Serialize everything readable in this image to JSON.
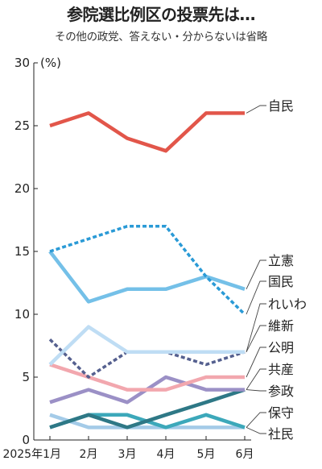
{
  "title": "参院選比例区の投票先は…",
  "subtitle": "その他の政党、答えない・分からないは省略",
  "chart_data": {
    "type": "line",
    "title": "参院選比例区の投票先は…",
    "subtitle": "その他の政党、答えない・分からないは省略",
    "unit": "(%)",
    "x": [
      "2025年1月",
      "2月",
      "3月",
      "4月",
      "5月",
      "6月"
    ],
    "ylim": [
      0,
      30
    ],
    "yticks": [
      "0",
      "5",
      "10",
      "15",
      "20",
      "25",
      "30"
    ],
    "grid": false,
    "legend": "right",
    "series": [
      {
        "name": "自民",
        "color": "#e2564a",
        "dashed": false,
        "values": [
          25,
          26,
          24,
          23,
          26,
          26
        ]
      },
      {
        "name": "立憲",
        "color": "#74c0e8",
        "dashed": false,
        "values": [
          15,
          11,
          12,
          12,
          13,
          12
        ]
      },
      {
        "name": "国民",
        "color": "#2a9ad6",
        "dashed": true,
        "values": [
          15,
          16,
          17,
          17,
          13,
          10
        ]
      },
      {
        "name": "れいわ",
        "color": "#bfddf4",
        "dashed": false,
        "values": [
          6,
          9,
          7,
          7,
          7,
          7
        ]
      },
      {
        "name": "維新",
        "color": "#55608f",
        "dashed": true,
        "values": [
          8,
          5,
          7,
          7,
          6,
          7
        ]
      },
      {
        "name": "公明",
        "color": "#f2a7ae",
        "dashed": false,
        "values": [
          6,
          5,
          4,
          4,
          5,
          5
        ]
      },
      {
        "name": "共産",
        "color": "#9b90c6",
        "dashed": false,
        "values": [
          3,
          4,
          3,
          5,
          4,
          4
        ]
      },
      {
        "name": "参政",
        "color": "#2e7886",
        "dashed": false,
        "values": [
          1,
          2,
          1,
          2,
          3,
          4
        ]
      },
      {
        "name": "保守",
        "color": "#a4cbe8",
        "dashed": false,
        "values": [
          2,
          1,
          1,
          1,
          1,
          1
        ]
      },
      {
        "name": "社民",
        "color": "#3ca8ba",
        "dashed": false,
        "values": [
          1,
          2,
          2,
          1,
          2,
          1
        ]
      }
    ]
  }
}
